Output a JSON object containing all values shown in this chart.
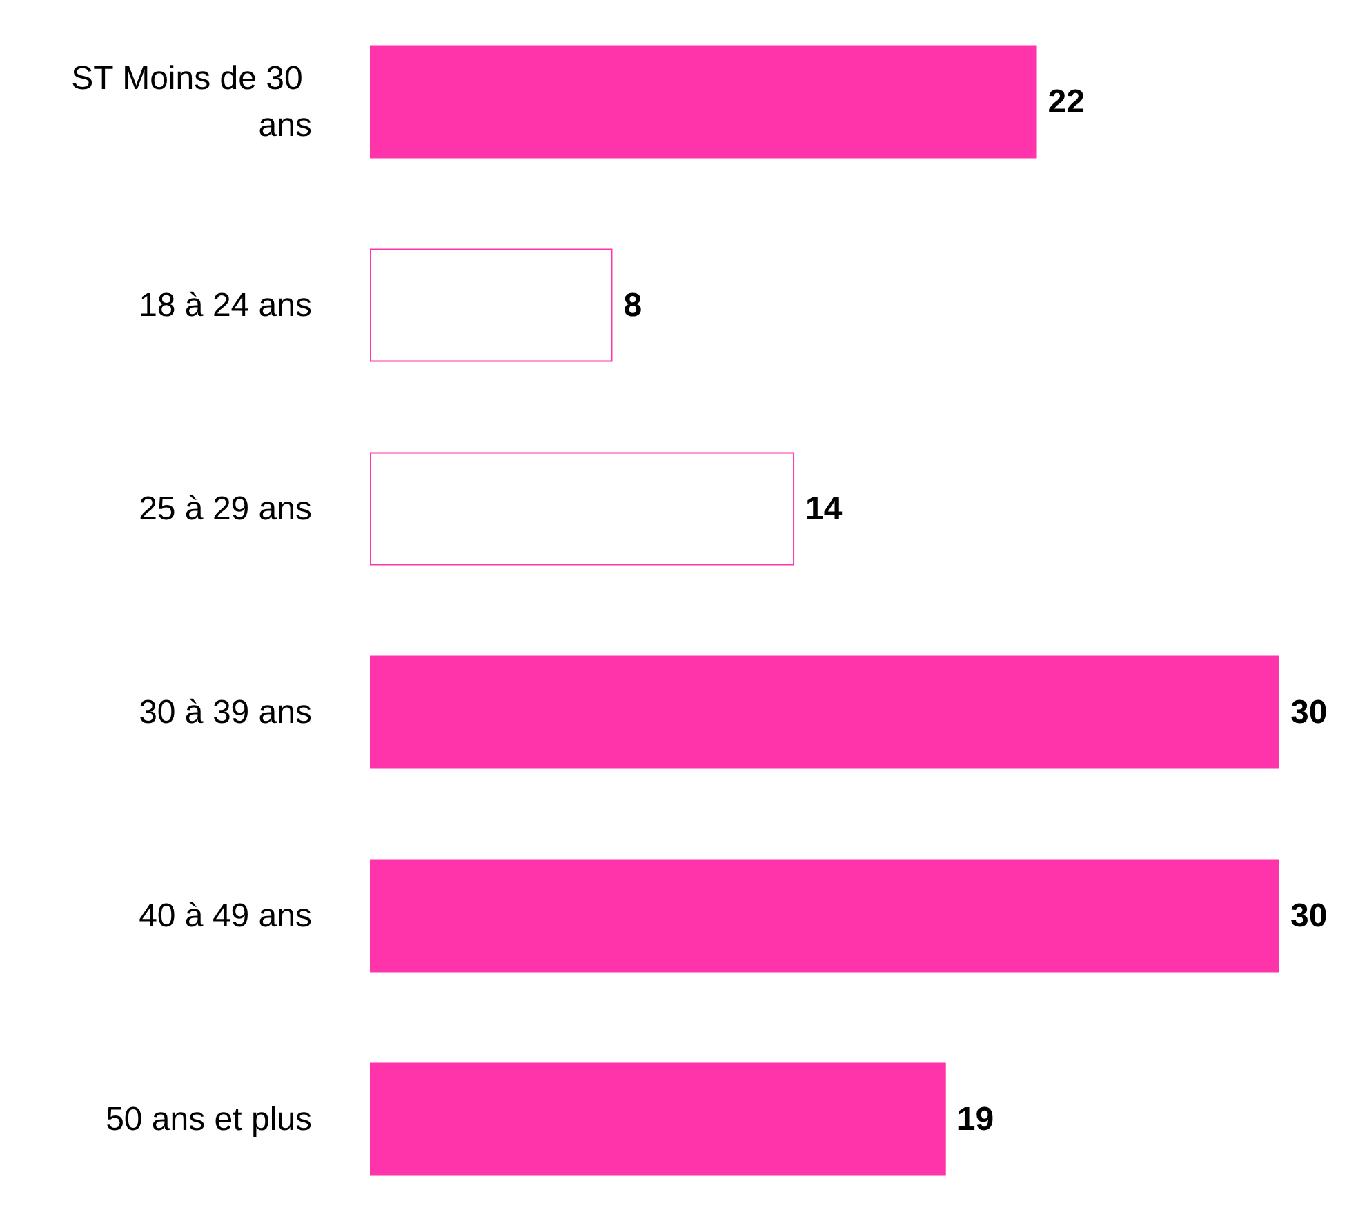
{
  "chart_data": {
    "type": "bar",
    "orientation": "horizontal",
    "categories": [
      "ST Moins de 30 ans",
      "18 à 24 ans",
      "25 à 29 ans",
      "30 à 39 ans",
      "40 à 49 ans",
      "50 ans et plus"
    ],
    "values": [
      22,
      8,
      14,
      30,
      30,
      19
    ],
    "color": "#ff33aa",
    "colors": [
      "#ff33aa",
      "#ffffff",
      "#ffffff",
      "#ff33aa",
      "#ff33aa",
      "#ff33aa"
    ],
    "data_labels": true
  }
}
